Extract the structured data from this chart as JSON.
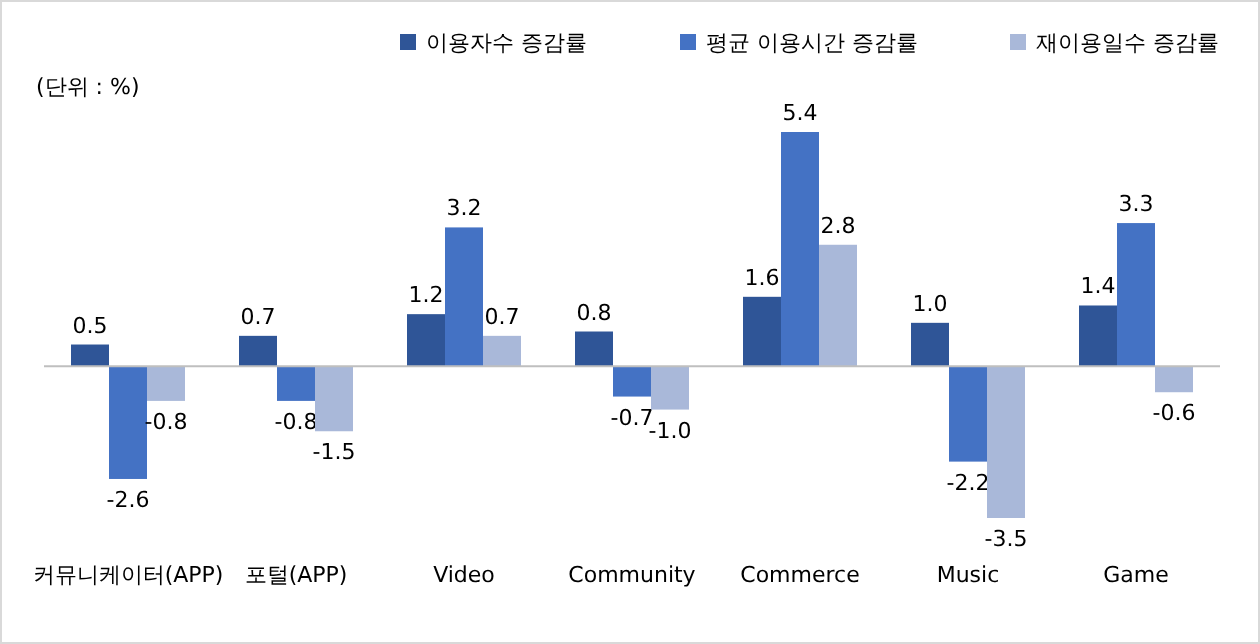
{
  "chart_data": {
    "type": "bar",
    "annotations": [
      "(단위 : %)"
    ],
    "categories": [
      "커뮤니케이터(APP)",
      "포털(APP)",
      "Video",
      "Community",
      "Commerce",
      "Music",
      "Game"
    ],
    "series": [
      {
        "name": "이용자수 증감률",
        "color": "#2f5597",
        "values": [
          0.5,
          0.7,
          1.2,
          0.8,
          1.6,
          1.0,
          1.4
        ],
        "value_labels": [
          "0.5",
          "0.7",
          "1.2",
          "0.8",
          "1.6",
          "1.0",
          "1.4"
        ]
      },
      {
        "name": "평균 이용시간 증감률",
        "color": "#4472c4",
        "values": [
          -2.6,
          -0.8,
          3.2,
          -0.7,
          5.4,
          -2.2,
          3.3
        ],
        "value_labels": [
          "-2.6",
          "-0.8",
          "3.2",
          "-0.7",
          "5.4",
          "-2.2",
          "3.3"
        ]
      },
      {
        "name": "재이용일수 증감률",
        "color": "#a9b8d9",
        "values": [
          -0.8,
          -1.5,
          0.7,
          -1.0,
          2.8,
          -3.5,
          -0.6
        ],
        "value_labels": [
          "-0.8",
          "-1.5",
          "0.7",
          "-1.0",
          "2.8",
          "-3.5",
          "-0.6"
        ]
      }
    ],
    "legend": "top"
  }
}
